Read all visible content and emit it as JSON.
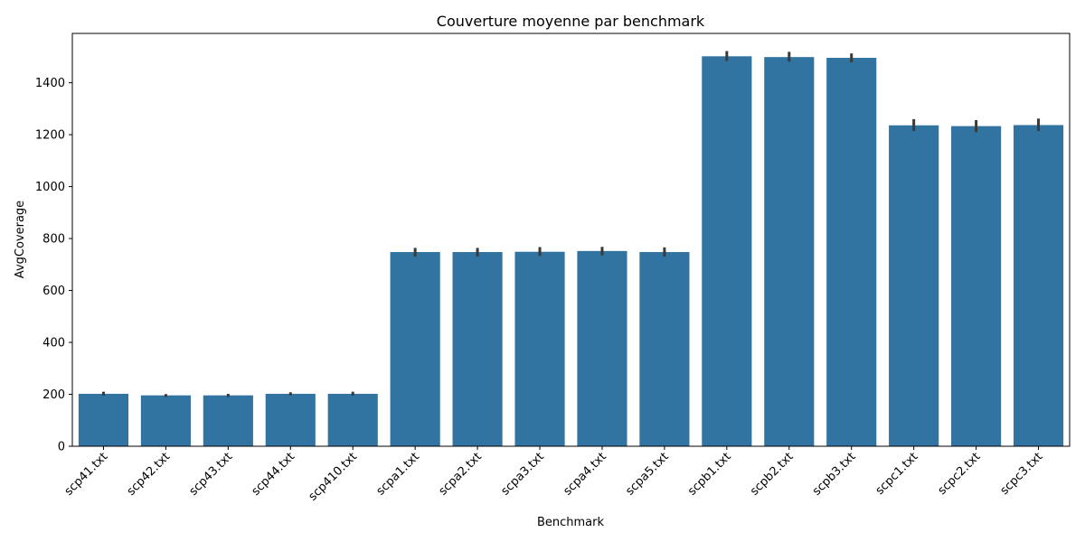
{
  "chart_data": {
    "type": "bar",
    "title": "Couverture moyenne par benchmark",
    "xlabel": "Benchmark",
    "ylabel": "AvgCoverage",
    "categories": [
      "scp41.txt",
      "scp42.txt",
      "scp43.txt",
      "scp44.txt",
      "scp410.txt",
      "scpa1.txt",
      "scpa2.txt",
      "scpa3.txt",
      "scpa4.txt",
      "scpa5.txt",
      "scpb1.txt",
      "scpb2.txt",
      "scpb3.txt",
      "scpc1.txt",
      "scpc2.txt",
      "scpc3.txt"
    ],
    "values": [
      202,
      196,
      196,
      202,
      202,
      748,
      748,
      749,
      752,
      748,
      1502,
      1499,
      1496,
      1236,
      1233,
      1237
    ],
    "error_low": [
      195,
      190,
      190,
      196,
      195,
      731,
      731,
      733,
      735,
      731,
      1484,
      1481,
      1479,
      1214,
      1210,
      1214
    ],
    "error_high": [
      210,
      201,
      202,
      208,
      210,
      764,
      764,
      767,
      768,
      766,
      1522,
      1519,
      1513,
      1260,
      1256,
      1262
    ],
    "ylim": [
      0,
      1590
    ],
    "yticks": [
      0,
      200,
      400,
      600,
      800,
      1000,
      1200,
      1400
    ],
    "grid": false,
    "bar_color": "#3274a1",
    "error_color": "#3a3a3a"
  }
}
